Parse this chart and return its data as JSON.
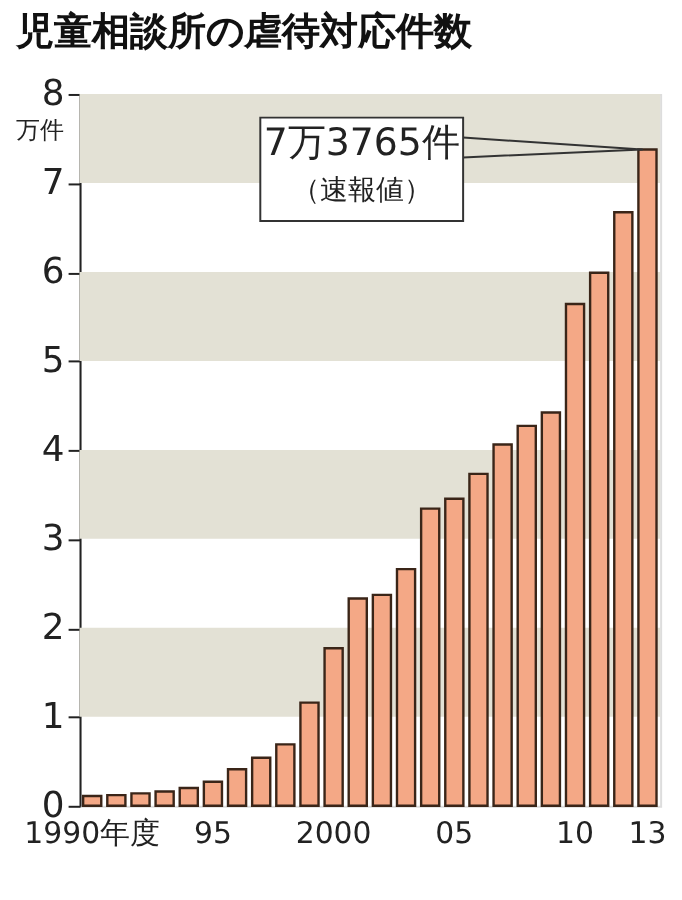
{
  "chart_data": {
    "type": "bar",
    "title": "児童相談所の虐待対応件数",
    "ylabel": "万件",
    "categories": [
      "1990年度",
      null,
      null,
      null,
      null,
      "95",
      null,
      null,
      null,
      null,
      "2000",
      null,
      null,
      null,
      null,
      "05",
      null,
      null,
      null,
      null,
      "10",
      null,
      null,
      "13"
    ],
    "values": [
      0.11,
      0.12,
      0.14,
      0.16,
      0.2,
      0.27,
      0.41,
      0.54,
      0.69,
      1.16,
      1.77,
      2.33,
      2.37,
      2.66,
      3.34,
      3.45,
      3.73,
      4.06,
      4.27,
      4.42,
      5.64,
      5.99,
      6.67,
      7.3765
    ],
    "color": "#f4a886",
    "ylim": [
      0,
      8
    ],
    "yticks": [
      0,
      1,
      2,
      3,
      4,
      5,
      6,
      7,
      8
    ],
    "bands": [
      {
        "axis": "y",
        "from": 1,
        "to": 2,
        "color": "#e3e1d5"
      },
      {
        "axis": "y",
        "from": 3,
        "to": 4,
        "color": "#e3e1d5"
      },
      {
        "axis": "y",
        "from": 5,
        "to": 6,
        "color": "#e3e1d5"
      },
      {
        "axis": "y",
        "from": 7,
        "to": 8,
        "color": "#e3e1d5"
      }
    ],
    "annotations": [
      "7万3765件",
      "（速報値）"
    ],
    "grid": false
  }
}
